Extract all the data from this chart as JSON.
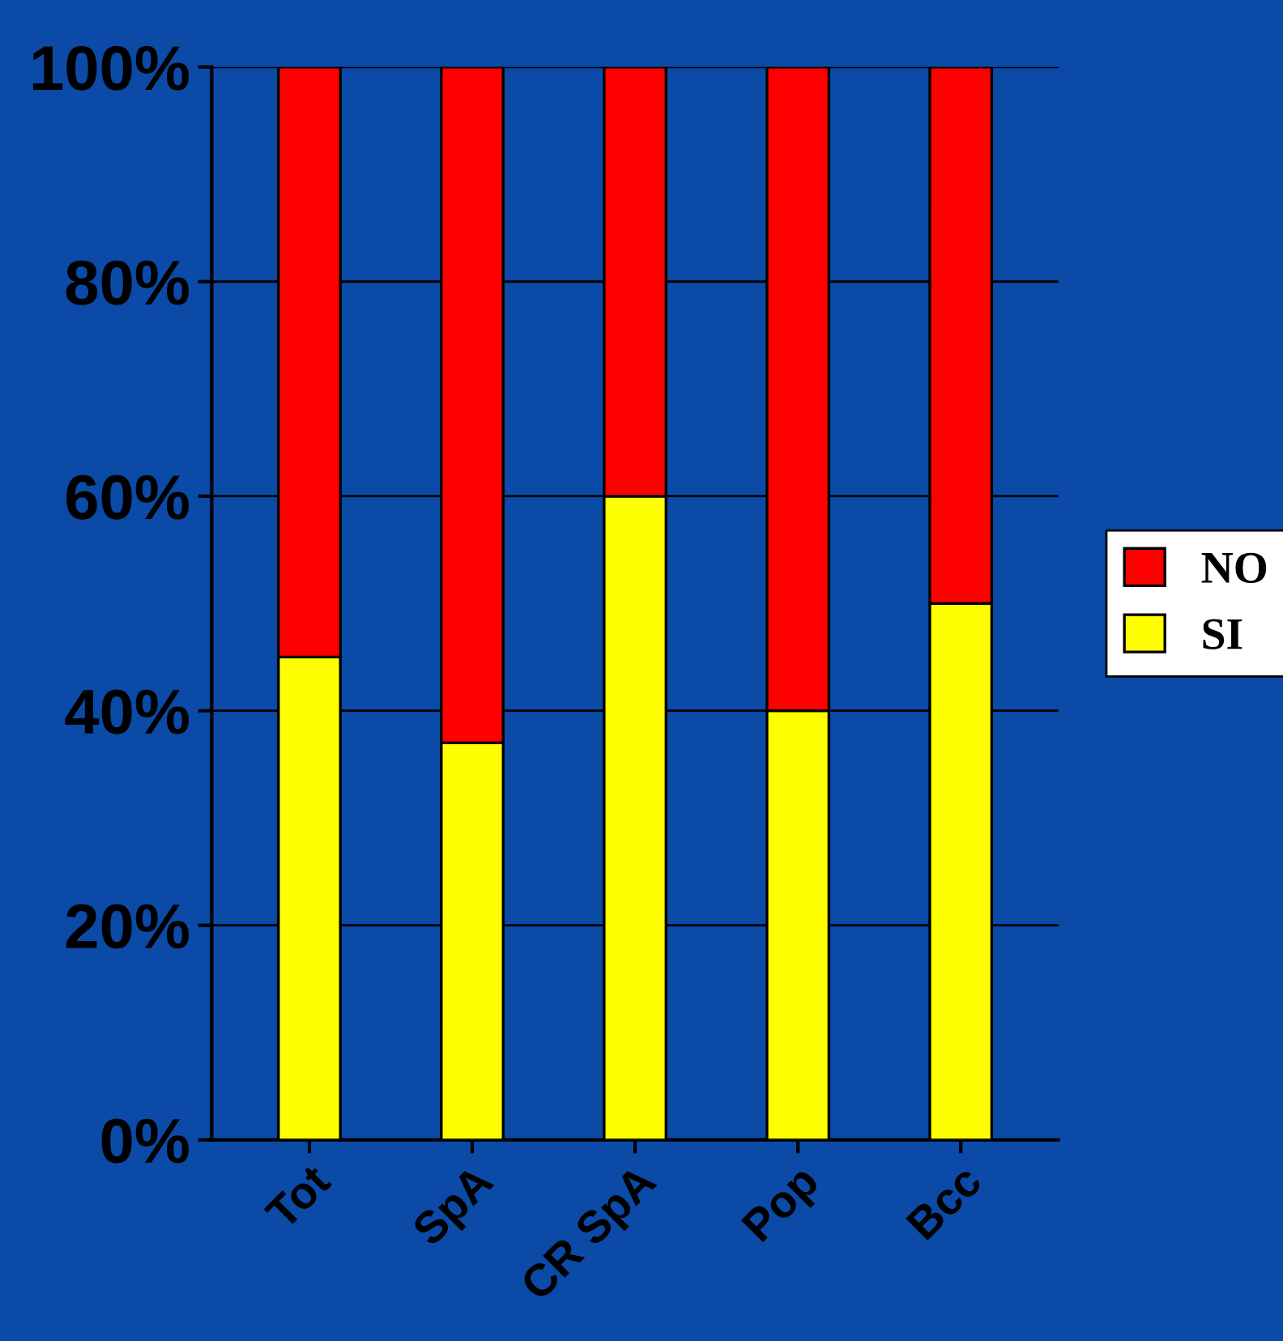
{
  "chart_data": {
    "type": "bar",
    "stacked": true,
    "categories": [
      "Tot",
      "SpA",
      "CR SpA",
      "Pop",
      "Bcc"
    ],
    "series": [
      {
        "name": "SI",
        "color": "#ffff00",
        "values": [
          45,
          37,
          60,
          40,
          50
        ]
      },
      {
        "name": "NO",
        "color": "#ff0000",
        "values": [
          55,
          63,
          40,
          60,
          50
        ]
      }
    ],
    "ylim": [
      0,
      100
    ],
    "yticks": [
      {
        "value": 0,
        "label": "0%"
      },
      {
        "value": 20,
        "label": "20%"
      },
      {
        "value": 40,
        "label": "40%"
      },
      {
        "value": 60,
        "label": "60%"
      },
      {
        "value": 80,
        "label": "80%"
      },
      {
        "value": 100,
        "label": "100%"
      }
    ],
    "grid": "y",
    "legend": "right"
  }
}
